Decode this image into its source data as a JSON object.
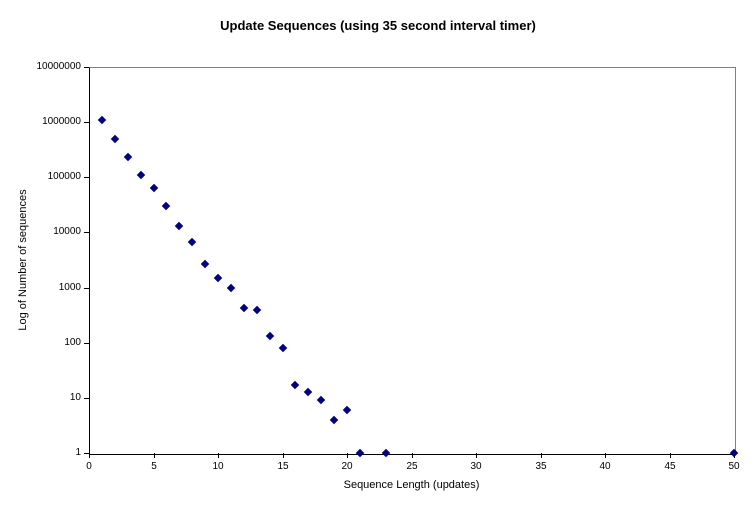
{
  "chart_data": {
    "type": "scatter",
    "title": "Update Sequences (using 35 second interval timer)",
    "xlabel": "Sequence Length (updates)",
    "ylabel": "Log of Number of sequences",
    "y_scale": "log",
    "xlim": [
      0,
      50
    ],
    "ylim": [
      1,
      10000000
    ],
    "x_ticks": [
      0,
      5,
      10,
      15,
      20,
      25,
      30,
      35,
      40,
      45,
      50
    ],
    "x_tick_labels": [
      "0",
      "5",
      "10",
      "15",
      "20",
      "25",
      "30",
      "35",
      "40",
      "45",
      "50"
    ],
    "y_ticks": [
      1,
      10,
      100,
      1000,
      10000,
      100000,
      1000000,
      10000000
    ],
    "y_tick_labels": [
      "1",
      "10",
      "100",
      "1000",
      "10000",
      "100000",
      "1000000",
      "10000000"
    ],
    "grid": "horizontal-major",
    "legend": "none",
    "marker": "diamond",
    "marker_color": "#000080",
    "gridline_color": "#C0C0C0",
    "plot_border_color": "#808080",
    "axis_color": "#000000",
    "background_color": "#FFFFFF",
    "points": [
      [
        1,
        1100000
      ],
      [
        2,
        500000
      ],
      [
        3,
        230000
      ],
      [
        4,
        110000
      ],
      [
        5,
        65000
      ],
      [
        6,
        30000
      ],
      [
        7,
        13000
      ],
      [
        8,
        6800
      ],
      [
        9,
        2700
      ],
      [
        10,
        1500
      ],
      [
        11,
        1000
      ],
      [
        12,
        430
      ],
      [
        13,
        400
      ],
      [
        14,
        130
      ],
      [
        15,
        80
      ],
      [
        16,
        17
      ],
      [
        17,
        13
      ],
      [
        18,
        9
      ],
      [
        19,
        4
      ],
      [
        20,
        6
      ],
      [
        21,
        1
      ],
      [
        23,
        1
      ],
      [
        50,
        1
      ]
    ]
  }
}
